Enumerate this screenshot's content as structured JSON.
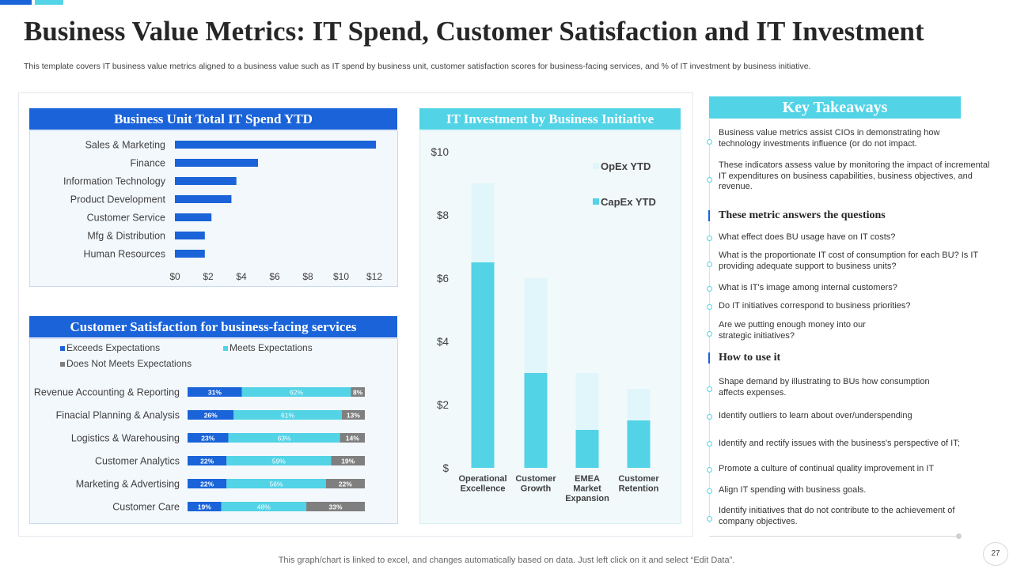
{
  "page": {
    "title": "Business Value Metrics: IT Spend, Customer Satisfaction and IT Investment",
    "subtitle": "This template covers IT  business value metrics aligned to a business value such as IT spend by business unit, customer satisfaction scores for business-facing services, and % of IT  investment by business initiative.",
    "footer": "This graph/chart is linked to excel,  and changes automatically based on data. Just left click on it and select “Edit Data”.",
    "page_number": "27"
  },
  "colors": {
    "blue": "#1a63d8",
    "cyan": "#52d3e6",
    "light_cyan": "#e1f6fa",
    "gray": "#7f7f7f"
  },
  "chart_data": [
    {
      "type": "bar",
      "orientation": "horizontal",
      "title": "Business Unit Total IT Spend YTD",
      "categories": [
        "Sales & Marketing",
        "Finance",
        "Information Technology",
        "Product Development",
        "Customer Service",
        "Mfg & Distribution",
        "Human Resources"
      ],
      "values": [
        12.1,
        5,
        3.7,
        3.4,
        2.2,
        1.8,
        1.8
      ],
      "xticks": [
        "$0",
        "$2",
        "$4",
        "$6",
        "$8",
        "$10",
        "$12"
      ],
      "xlim": [
        0,
        12
      ]
    },
    {
      "type": "bar",
      "stacked": true,
      "orientation": "horizontal",
      "title": "Customer Satisfaction for business-facing services",
      "legend": [
        "Exceeds Expectations",
        "Meets Expectations",
        "Does Not Meets Expectations"
      ],
      "categories": [
        "Revenue Accounting & Reporting",
        "Finacial Planning & Analysis",
        "Logistics & Warehousing",
        "Customer Analytics",
        "Marketing & Advertising",
        "Customer Care"
      ],
      "series": [
        {
          "name": "Exceeds Expectations",
          "values": [
            31,
            26,
            23,
            22,
            22,
            19
          ],
          "labels": [
            "31%",
            "26%",
            "23%",
            "22%",
            "22%",
            "19%"
          ]
        },
        {
          "name": "Meets Expectations",
          "values": [
            62,
            61,
            63,
            59,
            56,
            48
          ],
          "labels": [
            "62%",
            "61%",
            "63%",
            "59%",
            "56%",
            "48%"
          ]
        },
        {
          "name": "Does Not Meets Expectations",
          "values": [
            8,
            13,
            14,
            19,
            22,
            33
          ],
          "labels": [
            "8%",
            "13%",
            "14%",
            "19%",
            "22%",
            "33%"
          ]
        }
      ]
    },
    {
      "type": "bar",
      "stacked": true,
      "title": "IT Investment by Business Initiative",
      "categories": [
        "Operational Excellence",
        "Customer Growth",
        "EMEA Market Expansion",
        "Customer Retention"
      ],
      "category_lines": [
        [
          "Operational",
          "Excellence"
        ],
        [
          "Customer",
          "Growth"
        ],
        [
          "EMEA",
          "Market",
          "Expansion"
        ],
        [
          "Customer",
          "Retention"
        ]
      ],
      "series": [
        {
          "name": "CapEx YTD",
          "values": [
            6.5,
            3,
            1.2,
            1.5
          ]
        },
        {
          "name": "OpEx YTD",
          "values": [
            2.5,
            3,
            1.8,
            1
          ]
        }
      ],
      "legend": [
        "OpEx YTD",
        "CapEx YTD"
      ],
      "yticks": [
        "$10",
        "$8",
        "$6",
        "$4",
        "$2",
        "$"
      ],
      "ylim": [
        0,
        10
      ]
    }
  ],
  "takeaways": {
    "title": "Key Takeaways",
    "intro": [
      "Business value metrics assist CIOs in demonstrating how technology investments influence (or do not impact.",
      "These indicators assess value by monitoring the impact of incremental IT expenditures on business capabilities, business objectives, and revenue."
    ],
    "questions_heading": "These metric  answers the questions",
    "questions": [
      "What effect does BU usage have on IT costs?",
      "What is the proportionate IT cost of consumption for each BU? Is IT providing adequate support to business units?",
      "What is IT's image among internal customers?",
      "Do IT initiatives correspond to business priorities?",
      "Are we putting enough money into our strategic initiatives?"
    ],
    "use_heading": "How to use it",
    "uses": [
      "Shape demand by illustrating to BUs how consumption affects expenses.",
      "Identify outliers to learn about over/underspending",
      "Identify and rectify  issues with the business's perspective of IT;",
      "Promote a culture of continual quality improvement in IT",
      "Align IT spending with business goals.",
      "Identify initiatives that do not contribute to the achievement of company objectives."
    ]
  }
}
